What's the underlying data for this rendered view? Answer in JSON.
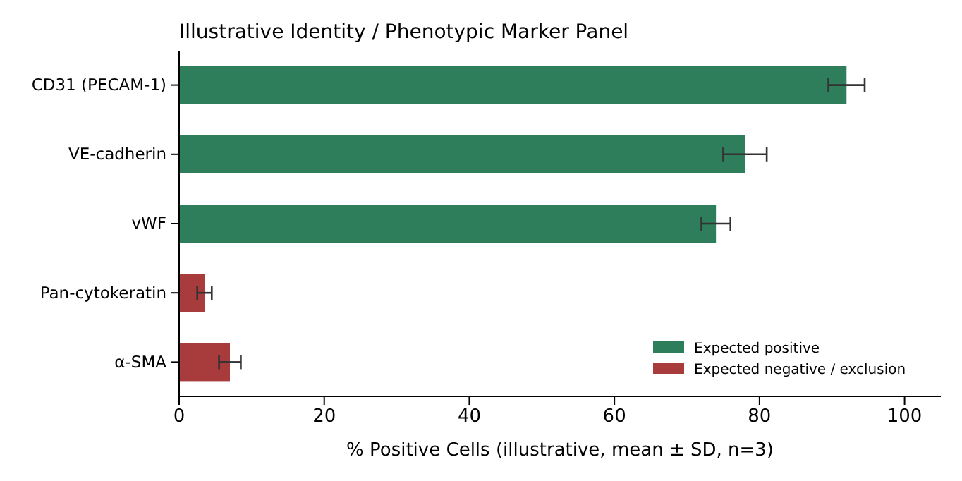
{
  "chart_data": {
    "type": "bar",
    "orientation": "horizontal",
    "title": "Illustrative Identity / Phenotypic Marker Panel",
    "xlabel": "% Positive Cells (illustrative, mean ± SD, n=3)",
    "categories": [
      "CD31 (PECAM-1)",
      "VE-cadherin",
      "vWF",
      "Pan-cytokeratin",
      "α-SMA"
    ],
    "series": [
      {
        "name": "Expected positive",
        "color": "#2e7d5b",
        "values": [
          92,
          78,
          74,
          null,
          null
        ],
        "errors": [
          2.5,
          3,
          2,
          null,
          null
        ]
      },
      {
        "name": "Expected negative / exclusion",
        "color": "#a83c3c",
        "values": [
          null,
          null,
          null,
          3.5,
          7
        ],
        "errors": [
          null,
          null,
          null,
          1,
          1.5
        ]
      }
    ],
    "xlim": [
      0,
      105
    ],
    "xticks": [
      0,
      20,
      40,
      60,
      80,
      100
    ],
    "grid": false,
    "legend": "bottom right"
  }
}
